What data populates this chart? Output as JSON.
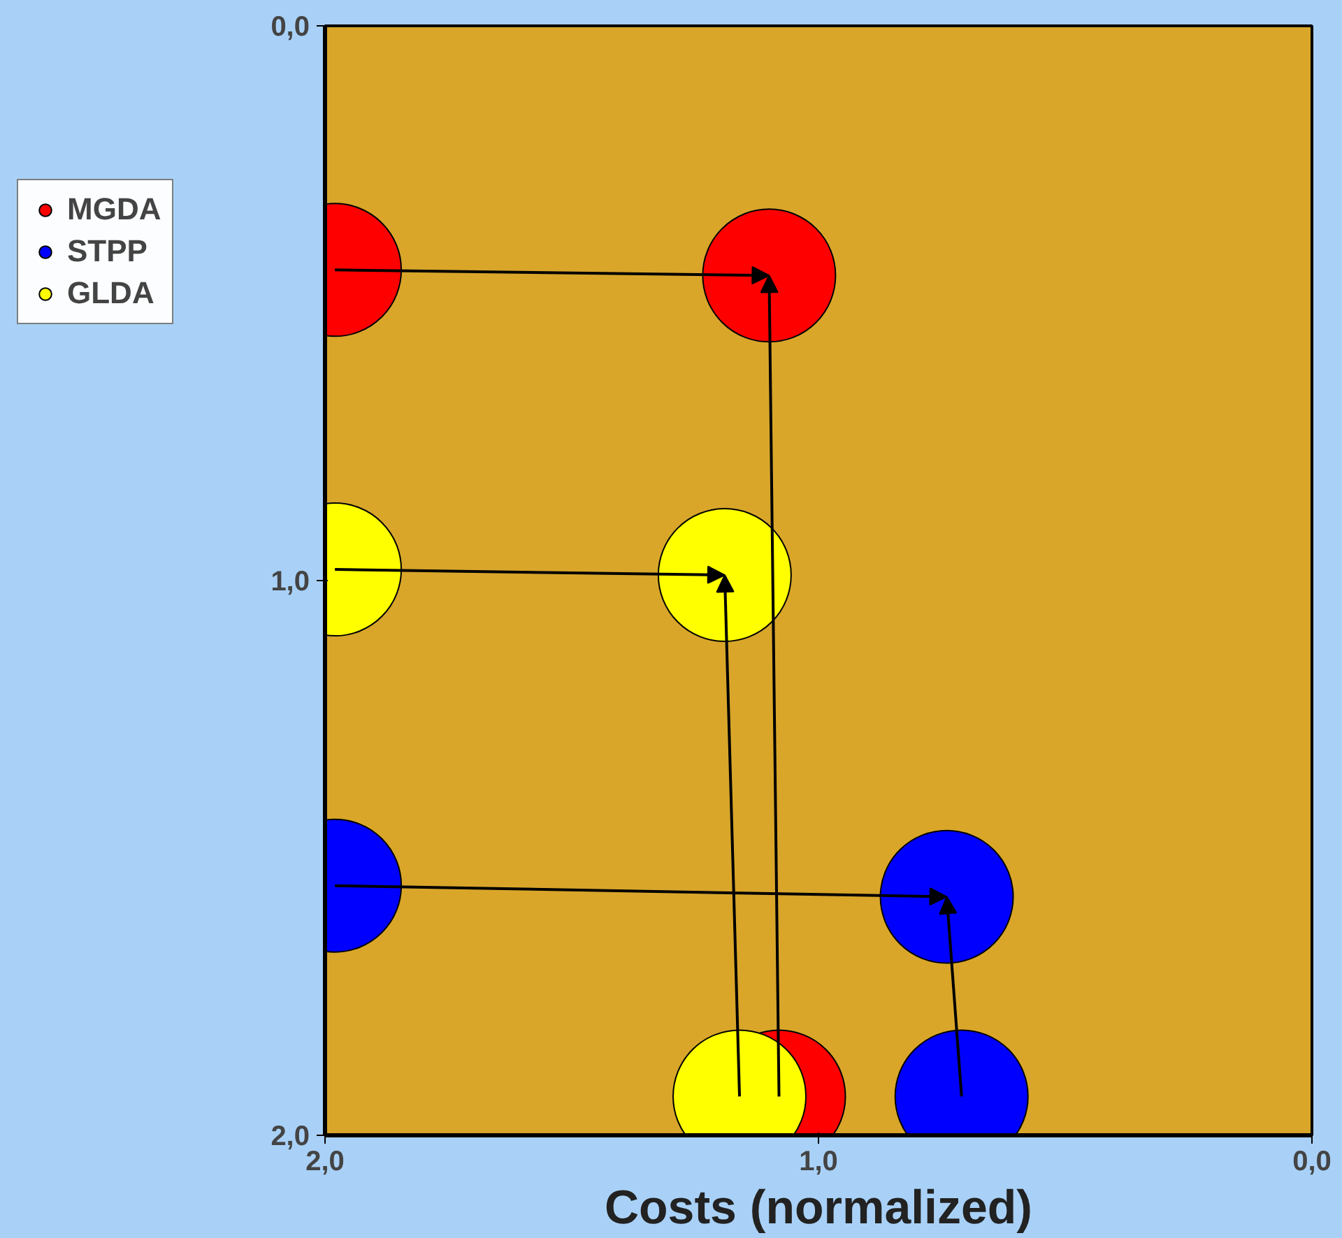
{
  "chart_data": {
    "type": "scatter",
    "xlabel": "Costs (normalized)",
    "xlim": [
      2.0,
      0.0
    ],
    "ylim": [
      2.0,
      0.0
    ],
    "xticks": [
      {
        "value": 2,
        "label": "2,0"
      },
      {
        "value": 1,
        "label": "1,0"
      },
      {
        "value": 0,
        "label": "0,0"
      }
    ],
    "yticks": [
      {
        "value": 0,
        "label": "0,0"
      },
      {
        "value": 1,
        "label": "1,0"
      },
      {
        "value": 2,
        "label": "2,0"
      }
    ],
    "series": [
      {
        "name": "MGDA",
        "color": "#ff0000",
        "x": [
          1.98,
          1.1,
          1.08
        ],
        "values": [
          0.44,
          0.45,
          1.93
        ]
      },
      {
        "name": "STPP",
        "color": "#0000ff",
        "x": [
          1.98,
          0.74,
          0.71
        ],
        "values": [
          1.55,
          1.57,
          1.93
        ]
      },
      {
        "name": "GLDA",
        "color": "#ffff00",
        "x": [
          1.98,
          1.19,
          1.16
        ],
        "values": [
          0.98,
          0.99,
          1.93
        ]
      }
    ],
    "marker": "circle",
    "grid": false,
    "legend": "left"
  }
}
